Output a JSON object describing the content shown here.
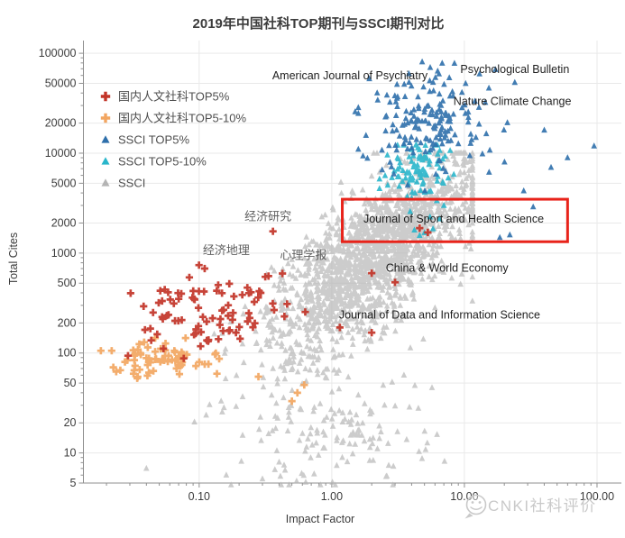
{
  "title": "2019年中国社科TOP期刊与SSCI期刊对比",
  "watermark": {
    "text": "CNKI社科评价",
    "icon": "wechat-smiley-icon",
    "color": "#c9c9c9"
  },
  "chart_data": {
    "type": "scatter",
    "title": "2019年中国社科TOP期刊与SSCI期刊对比",
    "xlabel": "Impact Factor",
    "ylabel": "Total Cites",
    "x_scale": "log",
    "y_scale": "log",
    "xlim": [
      0.0134,
      152.7
    ],
    "ylim": [
      5,
      134000
    ],
    "grid": true,
    "legend_position": "top-left-inside",
    "x_ticks": [
      0.1,
      1.0,
      10.0,
      100.0
    ],
    "x_tick_labels": [
      "0.10",
      "1.00",
      "10.00",
      "100.00"
    ],
    "y_ticks": [
      100000,
      50000,
      20000,
      10000,
      5000,
      2000,
      1000,
      500,
      200,
      100,
      50,
      20,
      10,
      5
    ],
    "y_tick_labels": [
      "100000",
      "50000",
      "20000",
      "10000",
      "5000",
      "2000",
      "1000",
      "500",
      "200",
      "100",
      "50",
      "20",
      "10",
      "5"
    ],
    "axis_color": "#8f8f8f",
    "grid_color": "#e9e9e9",
    "tick_label_color": "#3c3c3c",
    "series": [
      {
        "name": "国内人文社科TOP5%",
        "marker": "plus",
        "color": "#c23428",
        "opacity": 0.92,
        "clusters": [
          {
            "seed": 101,
            "count": 88,
            "lx_mean": -0.9,
            "lx_sd": 0.3,
            "lx_min": -1.8,
            "lx_max": -0.2,
            "ly_mean": 2.42,
            "ly_sd": 0.2,
            "ly_min": 1.93,
            "ly_max": 2.9
          }
        ],
        "points": [
          [
            0.36,
            1650
          ],
          [
            5.3,
            1610
          ],
          [
            4.6,
            1780
          ],
          [
            2.0,
            630
          ],
          [
            3.0,
            510
          ],
          [
            2.0,
            160
          ],
          [
            1.15,
            180
          ],
          [
            0.11,
            700
          ],
          [
            0.46,
            310
          ]
        ]
      },
      {
        "name": "国内人文社科TOP5-10%",
        "marker": "plus",
        "color": "#f2a661",
        "opacity": 0.92,
        "clusters": [
          {
            "seed": 202,
            "count": 74,
            "lx_mean": -1.3,
            "lx_sd": 0.22,
            "lx_min": -1.82,
            "lx_max": -0.55,
            "ly_mean": 1.95,
            "ly_sd": 0.09,
            "ly_min": 1.7,
            "ly_max": 2.15
          }
        ],
        "points": [
          [
            0.55,
            40
          ],
          [
            0.62,
            48
          ],
          [
            0.5,
            33
          ],
          [
            0.28,
            58
          ]
        ]
      },
      {
        "name": "SSCI TOP5%",
        "marker": "triangle",
        "color": "#2e6fab",
        "opacity": 0.9,
        "clusters": [
          {
            "seed": 303,
            "count": 175,
            "lx_mean": 0.78,
            "lx_sd": 0.22,
            "lx_min": 0.2,
            "lx_max": 1.58,
            "ly_mean": 4.3,
            "ly_sd": 0.26,
            "ly_min": 3.55,
            "ly_max": 4.9
          }
        ],
        "points": [
          [
            95,
            11800
          ],
          [
            45,
            7200
          ],
          [
            40,
            17000
          ],
          [
            22,
            1520
          ],
          [
            18.5,
            1430
          ],
          [
            33,
            2900
          ],
          [
            60,
            9000
          ],
          [
            4.8,
            82000
          ],
          [
            24,
            51000
          ],
          [
            13,
            62000
          ],
          [
            2.2,
            40000
          ],
          [
            1.5,
            26000
          ],
          [
            28,
            4200
          ]
        ]
      },
      {
        "name": "SSCI TOP5-10%",
        "marker": "triangle",
        "color": "#29b6cb",
        "opacity": 0.9,
        "clusters": [
          {
            "seed": 404,
            "count": 92,
            "lx_mean": 0.66,
            "lx_sd": 0.12,
            "lx_min": 0.36,
            "lx_max": 0.98,
            "ly_mean": 3.82,
            "ly_sd": 0.15,
            "ly_min": 3.45,
            "ly_max": 4.08
          }
        ],
        "points": [
          [
            4.2,
            1700
          ],
          [
            5.0,
            1600
          ],
          [
            5.8,
            1750
          ],
          [
            4.6,
            1500
          ],
          [
            6.5,
            2200
          ],
          [
            3.9,
            2600
          ],
          [
            7.0,
            3000
          ],
          [
            5.5,
            2300
          ]
        ]
      },
      {
        "name": "SSCI",
        "marker": "triangle",
        "color": "#b4b4b4",
        "opacity": 0.68,
        "clusters": [
          {
            "seed": 505,
            "count": 1750,
            "lx_mean": 0.29,
            "lx_sd": 0.4,
            "lx_min": -1.6,
            "lx_max": 1.06,
            "ly_base": 2.645,
            "ly_slope": 0.95,
            "ly_sd": 0.34,
            "ly_min": 0.72,
            "ly_max": 4.0
          },
          {
            "seed": 606,
            "count": 130,
            "lx_mean": 0.05,
            "lx_sd": 0.42,
            "lx_min": -1.2,
            "lx_max": 0.85,
            "ly_mean": 1.15,
            "ly_sd": 0.28,
            "ly_min": 0.68,
            "ly_max": 1.75
          }
        ],
        "points": [
          [
            0.04,
            7
          ],
          [
            0.16,
            6
          ],
          [
            0.3,
            5.5
          ],
          [
            1.2,
            9
          ],
          [
            2.5,
            30
          ],
          [
            3.5,
            60
          ],
          [
            5.7,
            45
          ],
          [
            4.5,
            28
          ]
        ]
      }
    ],
    "annotations": [
      {
        "text": "American Journal of Psychiatry",
        "x": 1.37,
        "y": 59500,
        "lang": "en"
      },
      {
        "text": "Psychological Bulletin",
        "x": 24,
        "y": 69000,
        "lang": "en"
      },
      {
        "text": "Nature Climate Change",
        "x": 23,
        "y": 33000,
        "lang": "en"
      },
      {
        "text": "经济研究",
        "x": 0.33,
        "y": 2300,
        "lang": "zh"
      },
      {
        "text": "经济地理",
        "x": 0.16,
        "y": 1060,
        "lang": "zh"
      },
      {
        "text": "心理学报",
        "x": 0.61,
        "y": 950,
        "lang": "zh"
      },
      {
        "text": "Journal of Sport and Health Science",
        "x": 8.3,
        "y": 2200,
        "lang": "en"
      },
      {
        "text": "China & World Economy",
        "x": 7.4,
        "y": 710,
        "lang": "en"
      },
      {
        "text": "Journal of Data and Information Science",
        "x": 6.5,
        "y": 240,
        "lang": "en"
      }
    ],
    "highlight_box": {
      "x_min": 1.2,
      "x_max": 60,
      "y_min": 1300,
      "y_max": 3460,
      "color": "#e8231a"
    }
  }
}
